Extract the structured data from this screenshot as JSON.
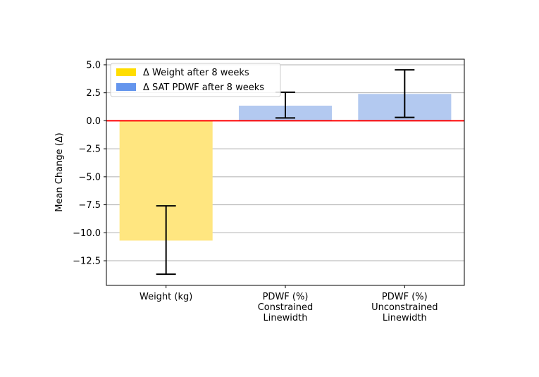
{
  "chart_data": {
    "type": "bar",
    "title": "",
    "xlabel": "",
    "ylabel": "Mean Change (Δ)",
    "ylim": [
      -14.7,
      5.5
    ],
    "yticks": [
      5.0,
      2.5,
      0.0,
      -2.5,
      -5.0,
      -7.5,
      -10.0,
      -12.5
    ],
    "ytick_labels": [
      "5.0",
      "2.5",
      "0.0",
      "−2.5",
      "−5.0",
      "−7.5",
      "−10.0",
      "−12.5"
    ],
    "grid": "horizontal",
    "reference_line": {
      "y": 0,
      "color": "#ff0000"
    },
    "legend_position": "top-left",
    "categories": [
      [
        "Weight (kg)"
      ],
      [
        "PDWF (%)",
        "Constrained",
        "Linewidth"
      ],
      [
        "PDWF (%)",
        "Unconstrained",
        "Linewidth"
      ]
    ],
    "bars": [
      {
        "value": -10.7,
        "err_low": -13.7,
        "err_high": -7.6,
        "color": "#ffe680",
        "series": 0
      },
      {
        "value": 1.35,
        "err_low": 0.25,
        "err_high": 2.55,
        "color": "#b3c9f0",
        "series": 1
      },
      {
        "value": 2.4,
        "err_low": 0.3,
        "err_high": 4.55,
        "color": "#b3c9f0",
        "series": 1
      }
    ],
    "series": [
      {
        "name": "Δ Weight after 8 weeks",
        "color": "#ffdd00"
      },
      {
        "name": "Δ SAT PDWF after 8 weeks",
        "color": "#6495ed"
      }
    ]
  }
}
